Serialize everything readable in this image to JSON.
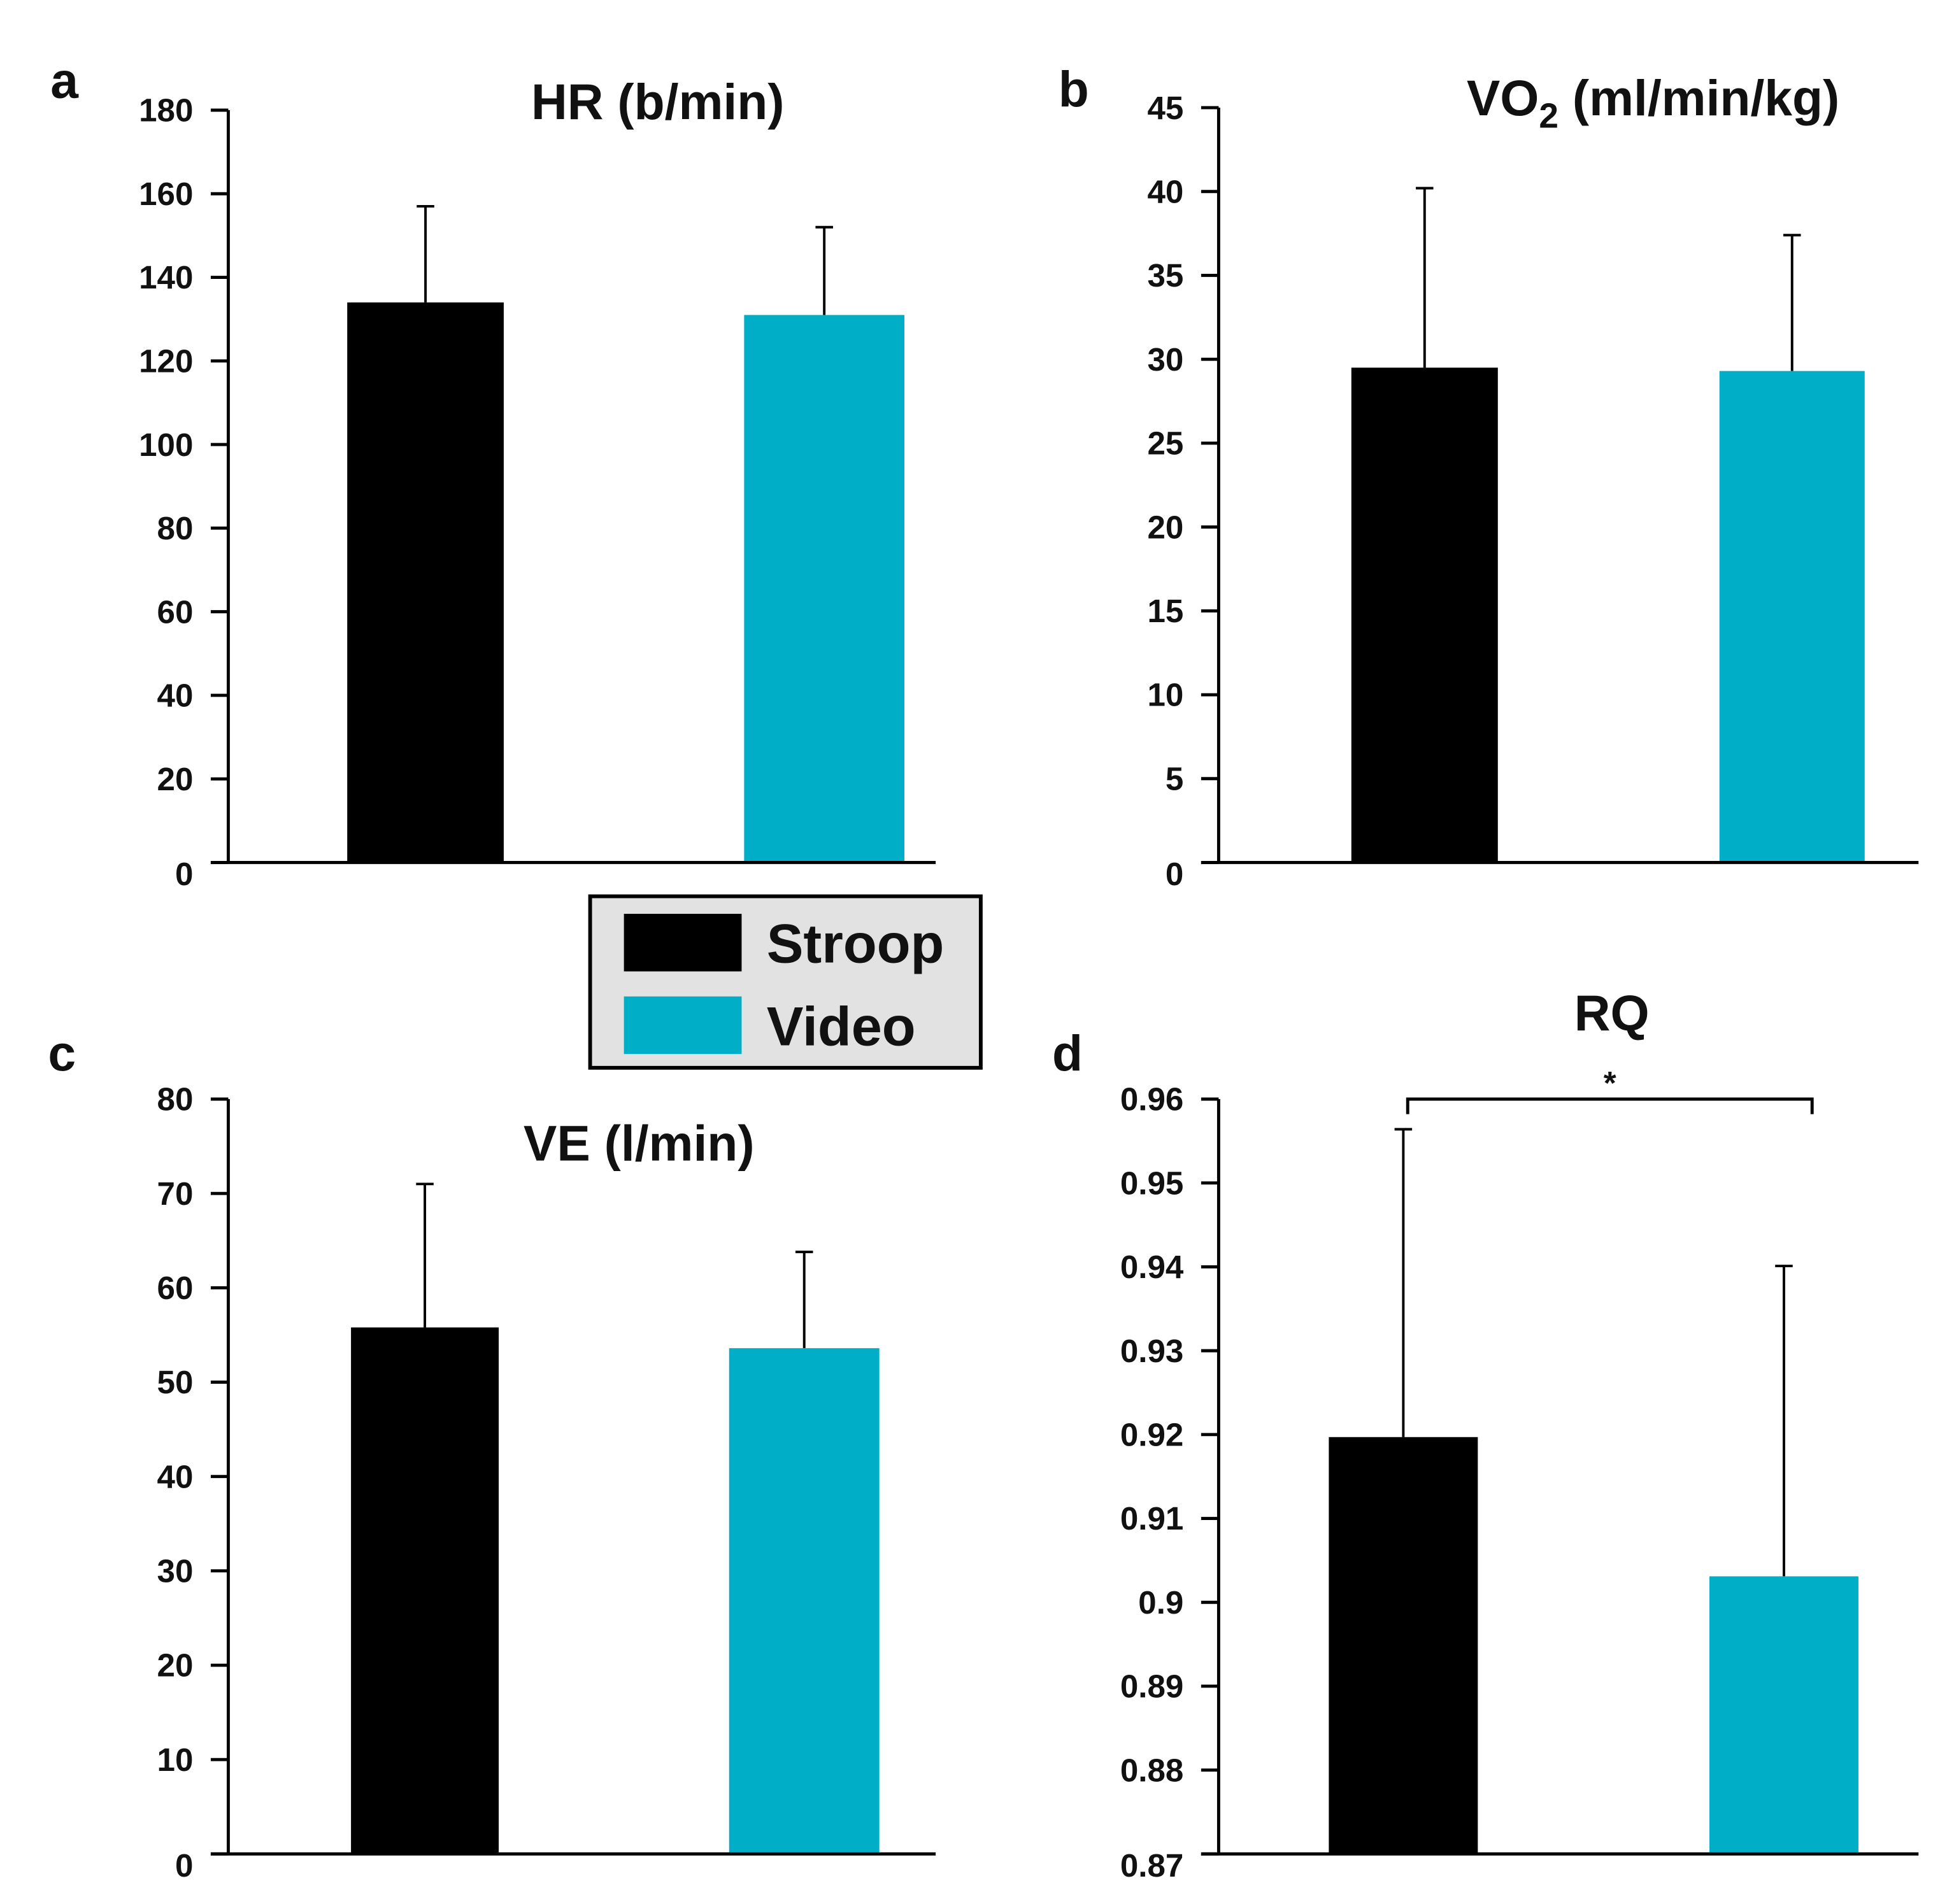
{
  "legend": {
    "items": [
      {
        "label": "Stroop",
        "color": "#000000"
      },
      {
        "label": "Video",
        "color": "#00AEC7"
      }
    ],
    "background": "#E2E2E2"
  },
  "chart_data": [
    {
      "type": "bar",
      "panel": "a",
      "title": "HR (b/min)",
      "categories": [
        "Stroop",
        "Video"
      ],
      "values": [
        134,
        131
      ],
      "error_upper": [
        157,
        152
      ],
      "ylim": [
        0,
        180
      ],
      "ticks": [
        0,
        20,
        40,
        60,
        80,
        100,
        120,
        140,
        160,
        180
      ],
      "tick_labels": [
        "0",
        "20",
        "40",
        "60",
        "80",
        "100",
        "120",
        "140",
        "160",
        "180"
      ]
    },
    {
      "type": "bar",
      "panel": "b",
      "title": "VO",
      "title_sub": "2",
      "title_rest": " (ml/min/kg)",
      "categories": [
        "Stroop",
        "Video"
      ],
      "values": [
        29.5,
        29.3
      ],
      "error_upper": [
        40.2,
        37.4
      ],
      "ylim": [
        0,
        45
      ],
      "ticks": [
        0,
        5,
        10,
        15,
        20,
        25,
        30,
        35,
        40,
        45
      ],
      "tick_labels": [
        "0",
        "5",
        "10",
        "15",
        "20",
        "25",
        "30",
        "35",
        "40",
        "45"
      ]
    },
    {
      "type": "bar",
      "panel": "c",
      "title": "VE (l/min)",
      "categories": [
        "Stroop",
        "Video"
      ],
      "values": [
        55.8,
        53.6
      ],
      "error_upper": [
        71,
        63.8
      ],
      "ylim": [
        0,
        80
      ],
      "ticks": [
        0,
        10,
        20,
        30,
        40,
        50,
        60,
        70,
        80
      ],
      "tick_labels": [
        "0",
        "10",
        "20",
        "30",
        "40",
        "50",
        "60",
        "70",
        "80"
      ]
    },
    {
      "type": "bar",
      "panel": "d",
      "title": "RQ",
      "categories": [
        "Stroop",
        "Video"
      ],
      "values": [
        0.9197,
        0.9031
      ],
      "error_upper": [
        0.9564,
        0.9401
      ],
      "ylim": [
        0.87,
        0.96
      ],
      "ticks": [
        0.87,
        0.88,
        0.89,
        0.9,
        0.91,
        0.92,
        0.93,
        0.94,
        0.95,
        0.96
      ],
      "tick_labels": [
        "0.87",
        "0.88",
        "0.89",
        "0.9",
        "0.91",
        "0.92",
        "0.93",
        "0.94",
        "0.95",
        "0.96"
      ],
      "significance": "*"
    }
  ]
}
